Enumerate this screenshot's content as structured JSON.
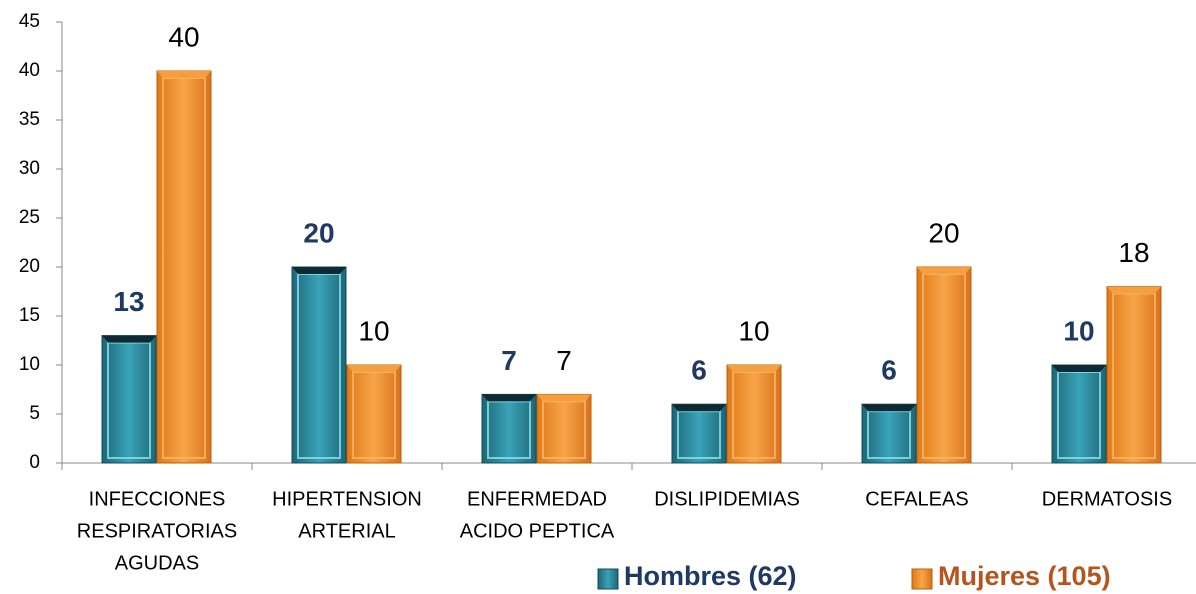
{
  "chart_data": {
    "type": "bar",
    "categories": [
      [
        "INFECCIONES",
        "RESPIRATORIAS",
        "AGUDAS"
      ],
      [
        "HIPERTENSION",
        "ARTERIAL"
      ],
      [
        "ENFERMEDAD",
        "ACIDO PEPTICA"
      ],
      [
        "DISLIPIDEMIAS"
      ],
      [
        "CEFALEAS"
      ],
      [
        "DERMATOSIS"
      ]
    ],
    "series": [
      {
        "name": "Hombres (62)",
        "color": "#2b8aa0",
        "label_color": "#1f3864",
        "label_bold": true,
        "values": [
          13,
          20,
          7,
          6,
          6,
          10
        ]
      },
      {
        "name": "Mujeres (105)",
        "color": "#f39330",
        "label_color": "#000000",
        "label_bold": false,
        "legend_color": "#b5541c",
        "values": [
          40,
          10,
          7,
          10,
          20,
          18
        ]
      }
    ],
    "ylim": [
      0,
      45
    ],
    "yticks": [
      0,
      5,
      10,
      15,
      20,
      25,
      30,
      35,
      40,
      45
    ],
    "grid": false,
    "legend": "bottom-right"
  }
}
